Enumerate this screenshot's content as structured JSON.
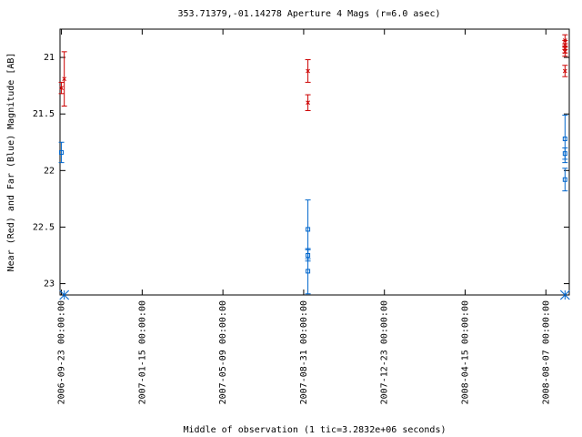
{
  "chart_data": {
    "type": "errorbar",
    "title": "353.71379,-01.14278   Aperture 4 Mags (r=6.0 asec)",
    "ylabel": "Near (Red) and Far (Blue) Magnitude [AB]",
    "xlabel": "Middle of observation (1 tic=3.2832e+06 seconds)",
    "xlim": [
      "2006-09-21 00:00:00",
      "2008-09-09 00:00:00"
    ],
    "xticks": [
      "2006-09-23 00:00:00",
      "2007-01-15 00:00:00",
      "2007-05-09 00:00:00",
      "2007-08-31 00:00:00",
      "2007-12-23 00:00:00",
      "2008-04-15 00:00:00",
      "2008-08-07 00:00:00"
    ],
    "ylim": [
      20.75,
      23.1
    ],
    "y_inverted": true,
    "yticks": [
      21,
      21.5,
      22,
      22.5,
      23
    ],
    "series": [
      {
        "color": "#cc0000",
        "marker": "cross",
        "x": [
          "2006-09-23 00:00:00",
          "2006-09-27 00:00:00",
          "2007-09-06 00:00:00",
          "2007-09-06 00:00:00",
          "2008-09-03 00:00:00",
          "2008-09-03 00:00:00",
          "2008-09-03 00:00:00",
          "2008-09-03 00:00:00",
          "2008-09-03 00:00:00"
        ],
        "values": [
          21.27,
          21.19,
          21.12,
          21.4,
          20.85,
          20.89,
          20.92,
          20.95,
          21.12
        ],
        "errors": [
          0.05,
          0.24,
          0.1,
          0.07,
          0.05,
          0.04,
          0.04,
          0.04,
          0.05
        ]
      },
      {
        "color": "#0066cc",
        "marker": "square",
        "x": [
          "2006-09-23 00:00:00",
          "2007-09-06 00:00:00",
          "2007-09-06 00:00:00",
          "2007-09-06 00:00:00",
          "2008-09-03 00:00:00",
          "2008-09-03 00:00:00",
          "2008-09-03 00:00:00"
        ],
        "values": [
          21.84,
          22.52,
          22.75,
          22.89,
          21.72,
          21.85,
          22.08
        ],
        "errors": [
          0.09,
          0.26,
          0.05,
          0.2,
          0.21,
          0.05,
          0.1
        ]
      }
    ],
    "observation_markers": {
      "color": "#0066cc",
      "x": [
        "2006-09-27 00:00:00",
        "2008-09-03 00:00:00"
      ]
    }
  }
}
